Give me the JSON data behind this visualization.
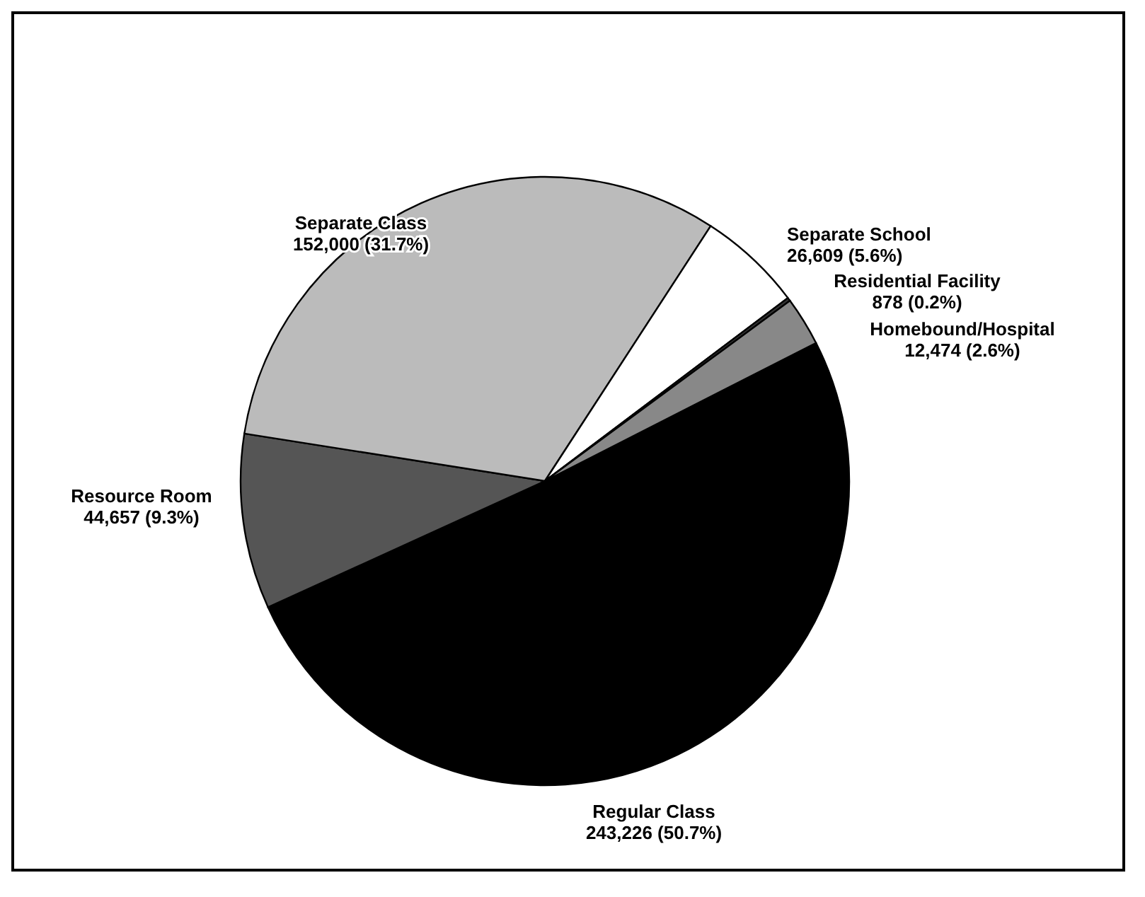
{
  "chart_data": {
    "type": "pie",
    "categories": [
      "Regular Class",
      "Resource Room",
      "Separate Class",
      "Separate School",
      "Residential Facility",
      "Homebound/Hospital"
    ],
    "values": [
      243226,
      44657,
      152000,
      26609,
      878,
      12474
    ],
    "value_labels": [
      "243,226 (50.7%)",
      "44,657 (9.3%)",
      "152,000 (31.7%)",
      "26,609 (5.6%)",
      "878 (0.2%)",
      "12,474 (2.6%)"
    ],
    "colors": [
      "#000000",
      "#555555",
      "#bbbbbb",
      "#ffffff",
      "#333333",
      "#888888"
    ]
  }
}
